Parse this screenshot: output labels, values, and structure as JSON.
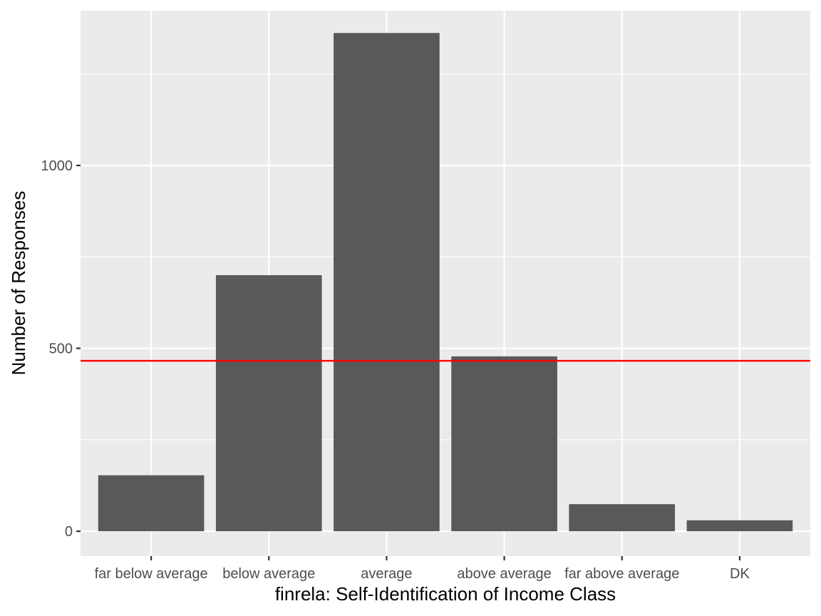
{
  "chart_data": {
    "type": "bar",
    "title": "",
    "xlabel": "finrela: Self-Identification of Income Class",
    "ylabel": "Number of Responses",
    "categories": [
      "far below average",
      "below average",
      "average",
      "above average",
      "far above average",
      "DK"
    ],
    "values": [
      153,
      700,
      1362,
      478,
      74,
      30
    ],
    "ylim": [
      -68,
      1423
    ],
    "yticks": [
      0,
      500,
      1000
    ],
    "ytick_labels": [
      "0",
      "500",
      "1000"
    ],
    "reference_line": {
      "y": 466,
      "color": "#ff0000"
    },
    "grid": true,
    "legend": "none",
    "colors": {
      "panel_background": "#ebebeb",
      "grid": "#ffffff",
      "bar": "#595959",
      "tick": "#333333"
    }
  }
}
